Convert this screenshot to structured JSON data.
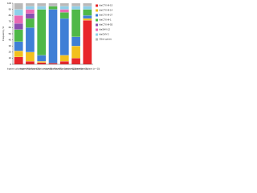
{
  "chart_data": {
    "type": "bar",
    "stacked": true,
    "y_label": "Frequency, %",
    "categories": [
      "Inpatient cultures (n = 140)",
      "Inpatient stool (n = 120)",
      "Hospital surfaces (n = 38)",
      "Hospital staff (n = 26)",
      "Hospital animals (n = 22)",
      "Community carriers (n = 31)",
      "Surveillance isolates (n = 20)"
    ],
    "series": [
      {
        "name": "blaCTX-M-15",
        "color": "#e8262a",
        "values": [
          12,
          5,
          3,
          2,
          5,
          10,
          72
        ]
      },
      {
        "name": "blaCTX-M-14",
        "color": "#f2c01e",
        "values": [
          10,
          15,
          2,
          0,
          10,
          20,
          3
        ]
      },
      {
        "name": "blaCTX-M-27",
        "color": "#3f7fd6",
        "values": [
          15,
          40,
          10,
          88,
          60,
          15,
          5
        ]
      },
      {
        "name": "blaCTX-M-1",
        "color": "#4fb848",
        "values": [
          20,
          15,
          75,
          5,
          10,
          45,
          10
        ]
      },
      {
        "name": "blaCTX-M-55",
        "color": "#8a4fb0",
        "values": [
          10,
          8,
          0,
          0,
          0,
          0,
          0
        ]
      },
      {
        "name": "blaSHV-12",
        "color": "#e86ab4",
        "values": [
          13,
          7,
          0,
          0,
          5,
          0,
          0
        ]
      },
      {
        "name": "blaCMY-2",
        "color": "#8fd0ea",
        "values": [
          10,
          5,
          5,
          0,
          5,
          5,
          5
        ]
      },
      {
        "name": "Other genes",
        "color": "#b9b9b9",
        "values": [
          10,
          5,
          5,
          5,
          5,
          5,
          5
        ]
      }
    ],
    "ylim": [
      0,
      100
    ],
    "yticks": [
      0,
      10,
      20,
      30,
      40,
      50,
      60,
      70,
      80,
      90,
      100
    ],
    "legend": "right"
  }
}
